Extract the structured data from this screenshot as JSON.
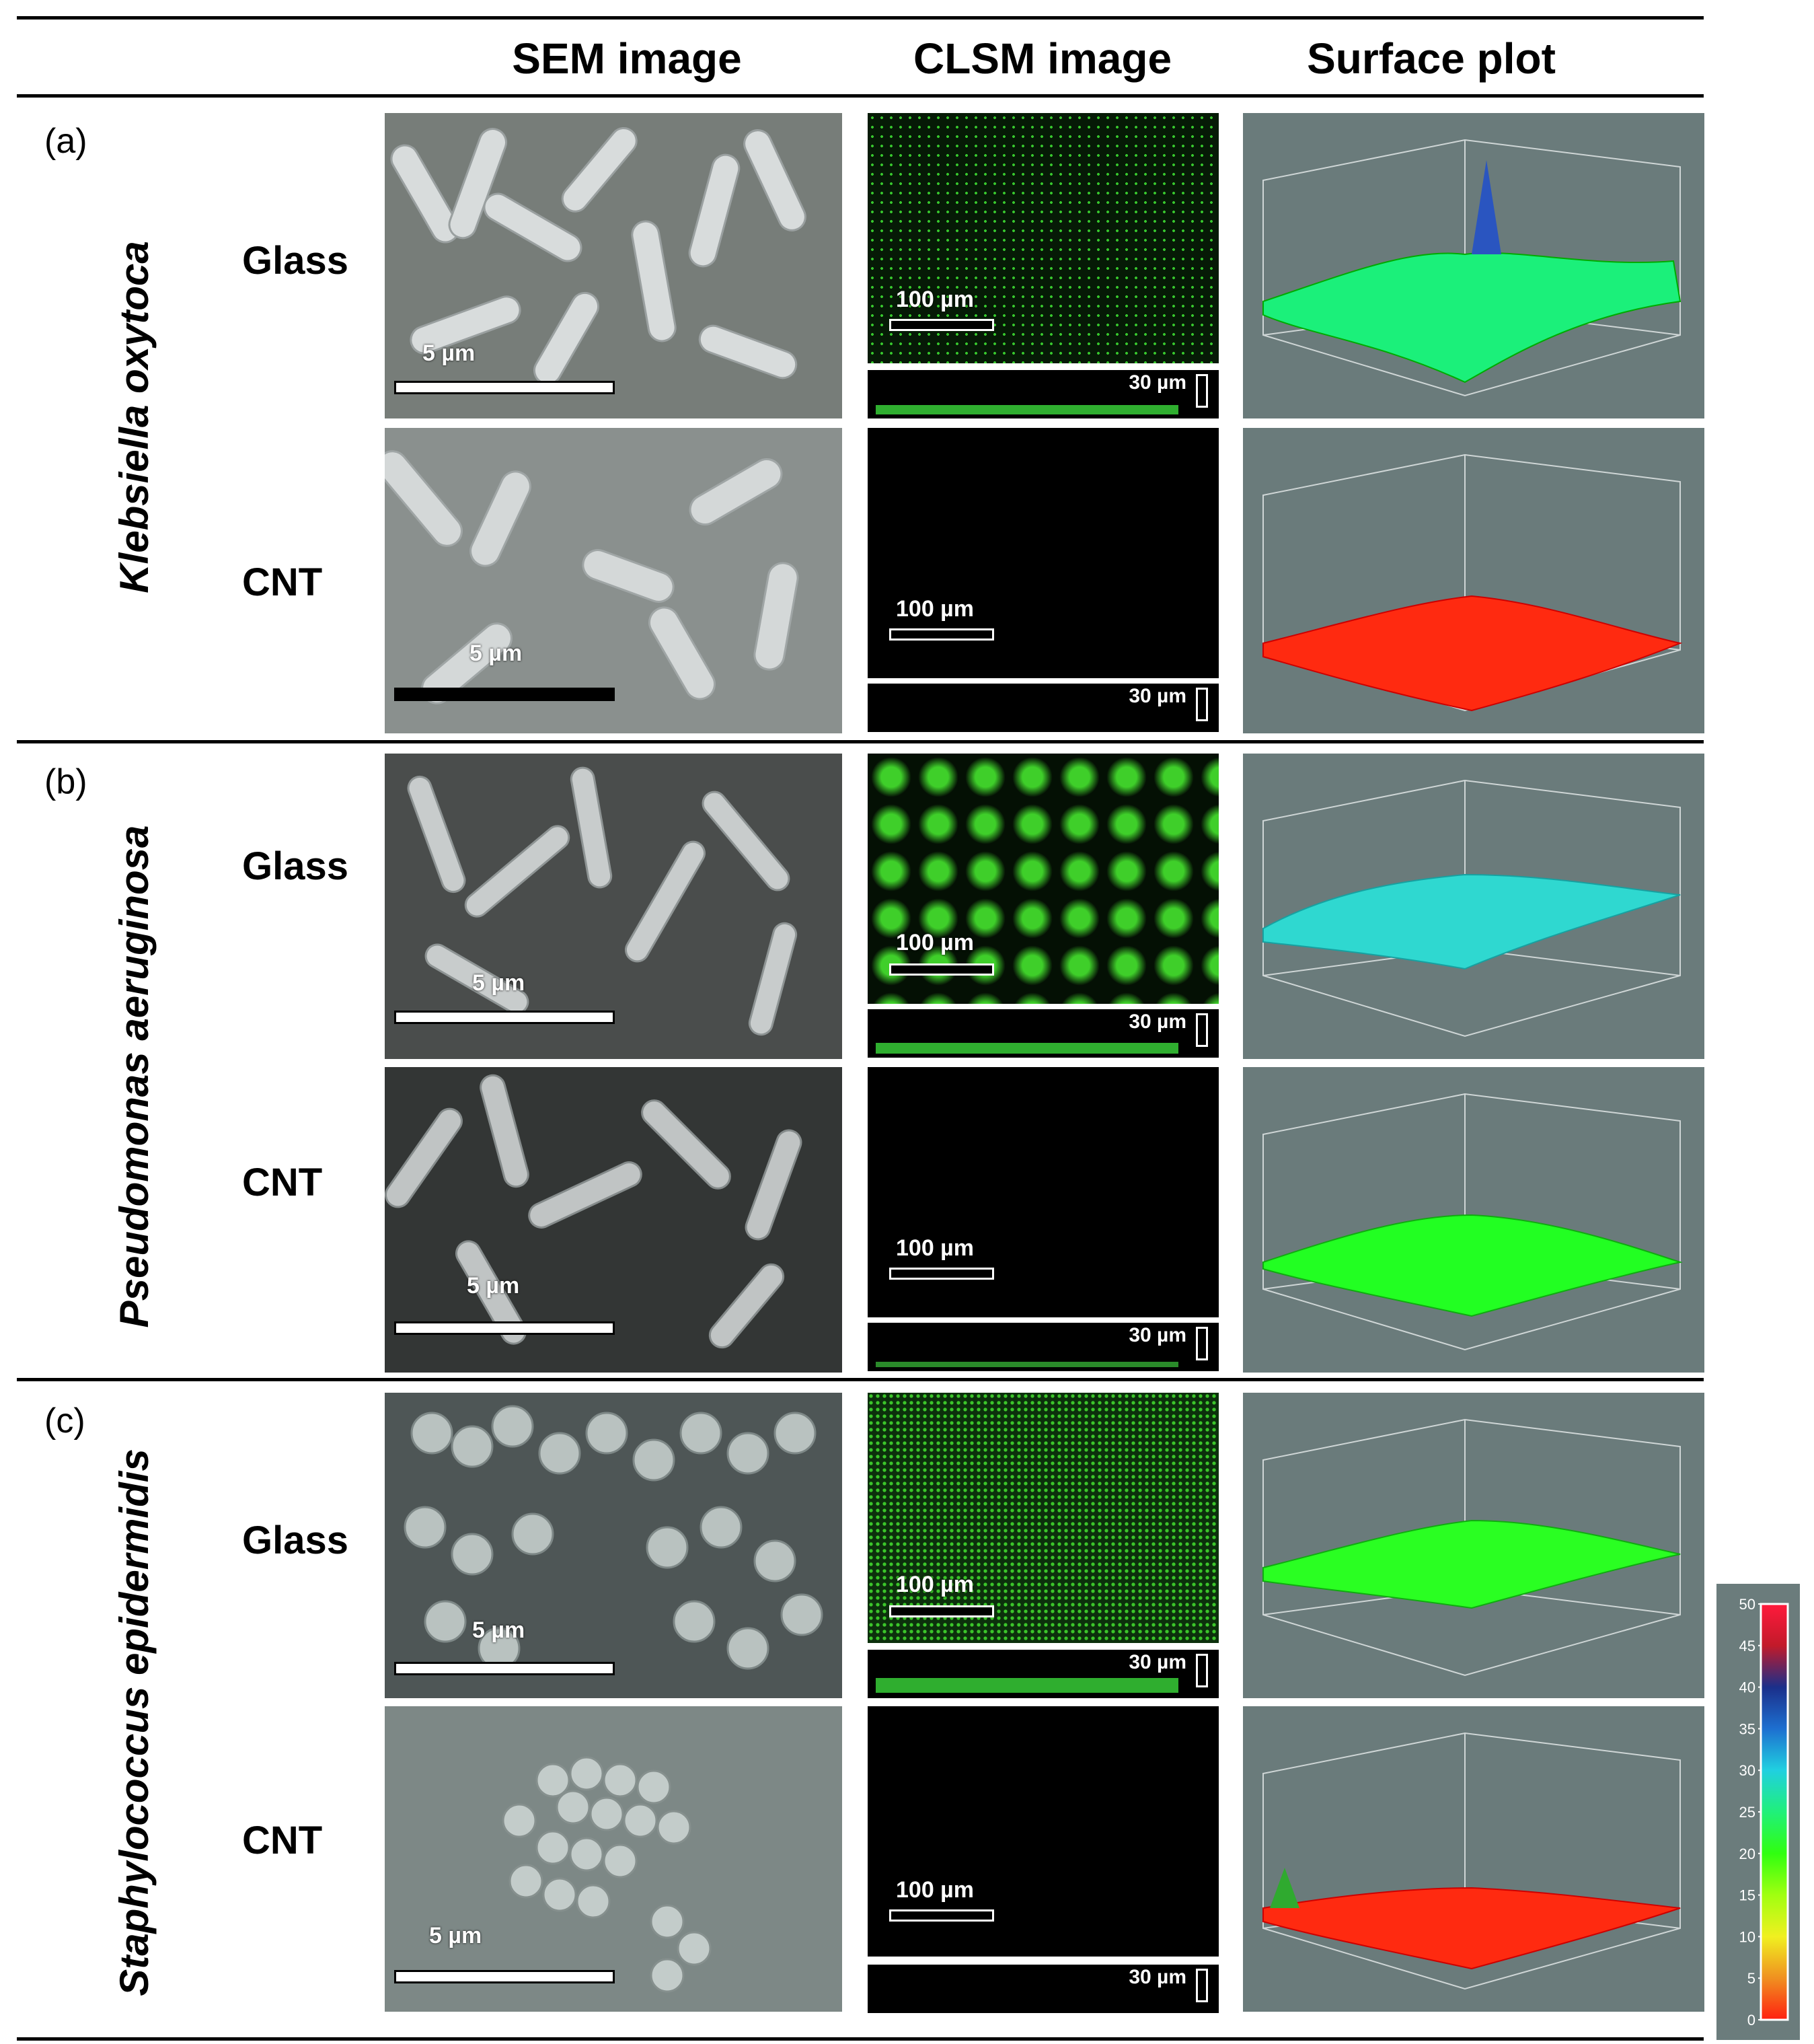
{
  "columns": {
    "sem": "SEM image",
    "clsm": "CLSM image",
    "surface": "Surface plot"
  },
  "panels": [
    {
      "letter": "(a)",
      "species": "Klebsiella oxytoca",
      "rows": [
        {
          "label": "Glass"
        },
        {
          "label": "CNT"
        }
      ]
    },
    {
      "letter": "(b)",
      "species": "Pseudomonas aeruginosa",
      "rows": [
        {
          "label": "Glass"
        },
        {
          "label": "CNT"
        }
      ]
    },
    {
      "letter": "(c)",
      "species": "Staphylococcus epidermidis",
      "rows": [
        {
          "label": "Glass"
        },
        {
          "label": "CNT"
        }
      ]
    }
  ],
  "scale_labels": {
    "sem": "5 µm",
    "clsm": "100 µm",
    "clsm_z": "30 µm"
  },
  "colorbar": {
    "ticks": [
      "50",
      "45",
      "40",
      "35",
      "30",
      "25",
      "20",
      "15",
      "10",
      "5",
      "0"
    ],
    "colors": [
      "#ff1a3c",
      "#c21a2a",
      "#1b2f8a",
      "#1d6fd0",
      "#20d0e0",
      "#20f07a",
      "#30ff10",
      "#a0ff10",
      "#f0f020",
      "#f09020",
      "#ff2010"
    ]
  },
  "surface_colors": {
    "a_glass": "#1bf07a",
    "a_cnt": "#ff2a10",
    "b_glass": "#2fd8d0",
    "b_cnt": "#22ff22",
    "c_glass": "#2aff22",
    "c_cnt": "#ff2a10"
  }
}
